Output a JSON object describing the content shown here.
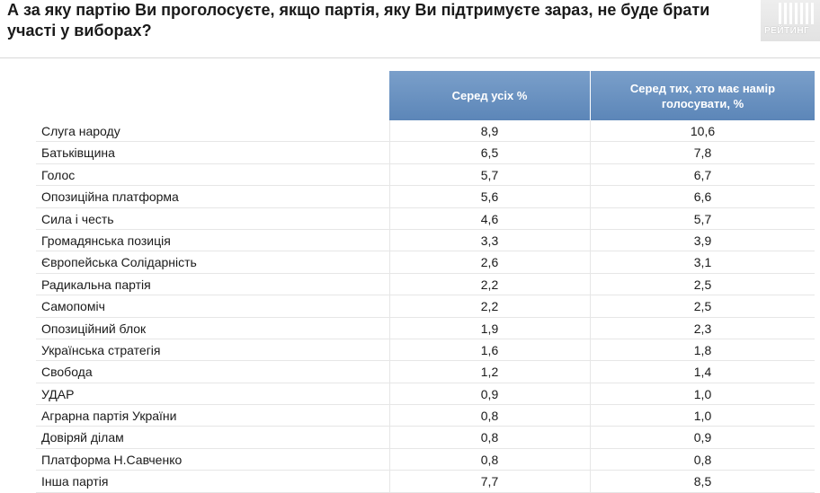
{
  "title": "А за яку партію Ви проголосуєте, якщо партія, яку Ви підтримуєте зараз, не буде брати участі у виборах?",
  "logo_text": "РЕЙТИНГ",
  "table": {
    "headers": [
      "Серед усіх %",
      "Серед тих, хто має намір голосувати, %"
    ],
    "rows": [
      {
        "party": "Слуга народу",
        "all": "8,9",
        "voters": "10,6"
      },
      {
        "party": "Батьківщина",
        "all": "6,5",
        "voters": "7,8"
      },
      {
        "party": "Голос",
        "all": "5,7",
        "voters": "6,7"
      },
      {
        "party": "Опозиційна платформа",
        "all": "5,6",
        "voters": "6,6"
      },
      {
        "party": "Сила і честь",
        "all": "4,6",
        "voters": "5,7"
      },
      {
        "party": "Громадянська позиція",
        "all": "3,3",
        "voters": "3,9"
      },
      {
        "party": "Європейська Солідарність",
        "all": "2,6",
        "voters": "3,1"
      },
      {
        "party": "Радикальна партія",
        "all": "2,2",
        "voters": "2,5"
      },
      {
        "party": "Самопоміч",
        "all": "2,2",
        "voters": "2,5"
      },
      {
        "party": "Опозиційний блок",
        "all": "1,9",
        "voters": "2,3"
      },
      {
        "party": "Українська стратегія",
        "all": "1,6",
        "voters": "1,8"
      },
      {
        "party": "Свобода",
        "all": "1,2",
        "voters": "1,4"
      },
      {
        "party": "УДАР",
        "all": "0,9",
        "voters": "1,0"
      },
      {
        "party": "Аграрна партія України",
        "all": "0,8",
        "voters": "1,0"
      },
      {
        "party": "Довіряй ділам",
        "all": "0,8",
        "voters": "0,9"
      },
      {
        "party": "Платформа Н.Савченко",
        "all": "0,8",
        "voters": "0,8"
      },
      {
        "party": "Інша партія",
        "all": "7,7",
        "voters": "8,5"
      }
    ]
  },
  "colors": {
    "header_bg": "#6b93c2",
    "header_text": "#ffffff",
    "row_border": "#e6e6e6"
  }
}
